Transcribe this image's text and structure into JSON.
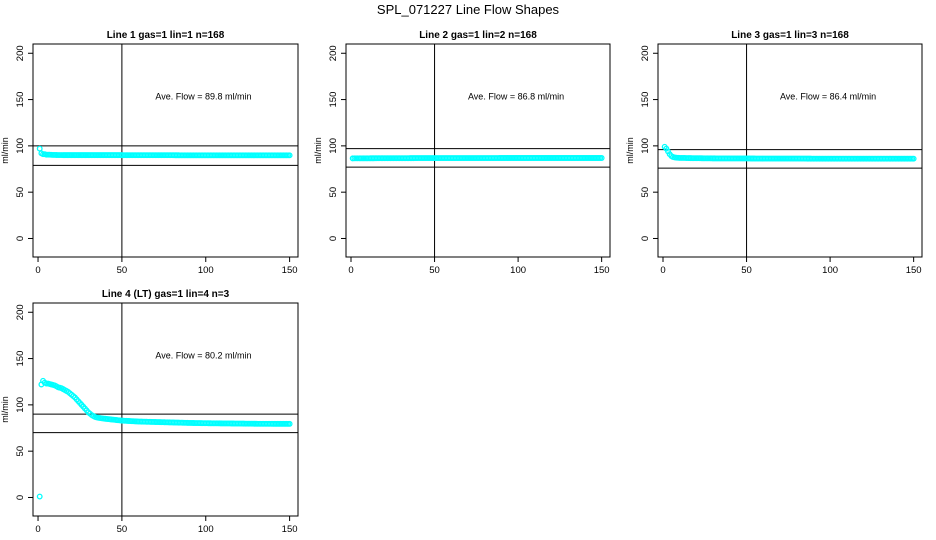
{
  "suptitle": "SPL_071227  Line Flow Shapes",
  "chart_data": [
    {
      "type": "scatter",
      "title": "Line 1 gas=1 lin=1 n=168",
      "ylabel": "ml/min",
      "xlabel": "",
      "xlim": [
        -3,
        155
      ],
      "ylim": [
        -20,
        210
      ],
      "xticks": [
        0,
        50,
        100,
        150
      ],
      "yticks": [
        0,
        50,
        100,
        150,
        200
      ],
      "annotation": "Ave. Flow =  89.8  ml/min",
      "annotation_pos": [
        70,
        150
      ],
      "hlines": [
        100,
        79
      ],
      "vline": 50,
      "color": "#00ffff",
      "series": [
        {
          "x": [
            1,
            2,
            3,
            4,
            5,
            6,
            7,
            8,
            10,
            12,
            15,
            20,
            25,
            30,
            40,
            50,
            60,
            70,
            80,
            90,
            100,
            110,
            120,
            130,
            140,
            150
          ],
          "y": [
            97,
            92,
            91,
            91,
            90.5,
            90.5,
            90.5,
            90.3,
            90.2,
            90.1,
            90,
            90,
            90,
            90,
            90,
            90,
            89.9,
            89.9,
            89.9,
            89.8,
            89.8,
            89.8,
            89.8,
            89.8,
            89.8,
            89.8
          ]
        }
      ]
    },
    {
      "type": "scatter",
      "title": "Line 2 gas=1 lin=2 n=168",
      "ylabel": "ml/min",
      "xlabel": "",
      "xlim": [
        -3,
        155
      ],
      "ylim": [
        -20,
        210
      ],
      "xticks": [
        0,
        50,
        100,
        150
      ],
      "yticks": [
        0,
        50,
        100,
        150,
        200
      ],
      "annotation": "Ave. Flow =  86.8  ml/min",
      "annotation_pos": [
        70,
        150
      ],
      "hlines": [
        97,
        77
      ],
      "vline": 50,
      "color": "#00ffff",
      "series": [
        {
          "x": [
            1,
            5,
            10,
            20,
            30,
            40,
            50,
            60,
            70,
            80,
            90,
            100,
            110,
            120,
            130,
            140,
            150
          ],
          "y": [
            86.5,
            86.6,
            86.6,
            86.7,
            86.7,
            86.8,
            86.8,
            86.8,
            86.8,
            86.8,
            86.9,
            86.9,
            86.9,
            86.9,
            86.9,
            86.9,
            86.9
          ]
        }
      ]
    },
    {
      "type": "scatter",
      "title": "Line 3 gas=1 lin=3 n=168",
      "ylabel": "ml/min",
      "xlabel": "",
      "xlim": [
        -3,
        155
      ],
      "ylim": [
        -20,
        210
      ],
      "xticks": [
        0,
        50,
        100,
        150
      ],
      "yticks": [
        0,
        50,
        100,
        150,
        200
      ],
      "annotation": "Ave. Flow =  86.4  ml/min",
      "annotation_pos": [
        70,
        150
      ],
      "hlines": [
        96,
        76
      ],
      "vline": 50,
      "color": "#00ffff",
      "series": [
        {
          "x": [
            1,
            2,
            3,
            4,
            5,
            6,
            7,
            8,
            10,
            12,
            15,
            20,
            25,
            30,
            40,
            50,
            60,
            70,
            80,
            90,
            100,
            110,
            120,
            130,
            140,
            150
          ],
          "y": [
            99,
            97,
            94,
            91,
            89,
            88,
            87.5,
            87.2,
            87,
            87,
            86.8,
            86.7,
            86.6,
            86.5,
            86.4,
            86.4,
            86.3,
            86.3,
            86.3,
            86.2,
            86.2,
            86.2,
            86.2,
            86.2,
            86.2,
            86.2
          ]
        }
      ]
    },
    {
      "type": "scatter",
      "title": "Line 4 (LT) gas=1 lin=4 n=3",
      "ylabel": "ml/min",
      "xlabel": "",
      "xlim": [
        -3,
        155
      ],
      "ylim": [
        -20,
        210
      ],
      "xticks": [
        0,
        50,
        100,
        150
      ],
      "yticks": [
        0,
        50,
        100,
        150,
        200
      ],
      "annotation": "Ave. Flow =  80.2  ml/min",
      "annotation_pos": [
        70,
        150
      ],
      "hlines": [
        90,
        70
      ],
      "vline": 50,
      "color": "#00ffff",
      "series": [
        {
          "x": [
            1,
            2,
            3,
            4,
            5,
            6,
            8,
            10,
            12,
            14,
            16,
            18,
            20,
            22,
            24,
            26,
            28,
            30,
            32,
            34,
            36,
            40,
            45,
            50,
            55,
            60,
            70,
            80,
            90,
            100,
            110,
            120,
            130,
            140,
            150
          ],
          "y": [
            1,
            122,
            126,
            124,
            123,
            123,
            122,
            121,
            119,
            118,
            116,
            114,
            111,
            108,
            104,
            100,
            96,
            92,
            89,
            87,
            86,
            85,
            84,
            83,
            82.5,
            82,
            81.5,
            81,
            80.5,
            80.2,
            80,
            79.8,
            79.6,
            79.5,
            79.5
          ]
        }
      ]
    }
  ]
}
